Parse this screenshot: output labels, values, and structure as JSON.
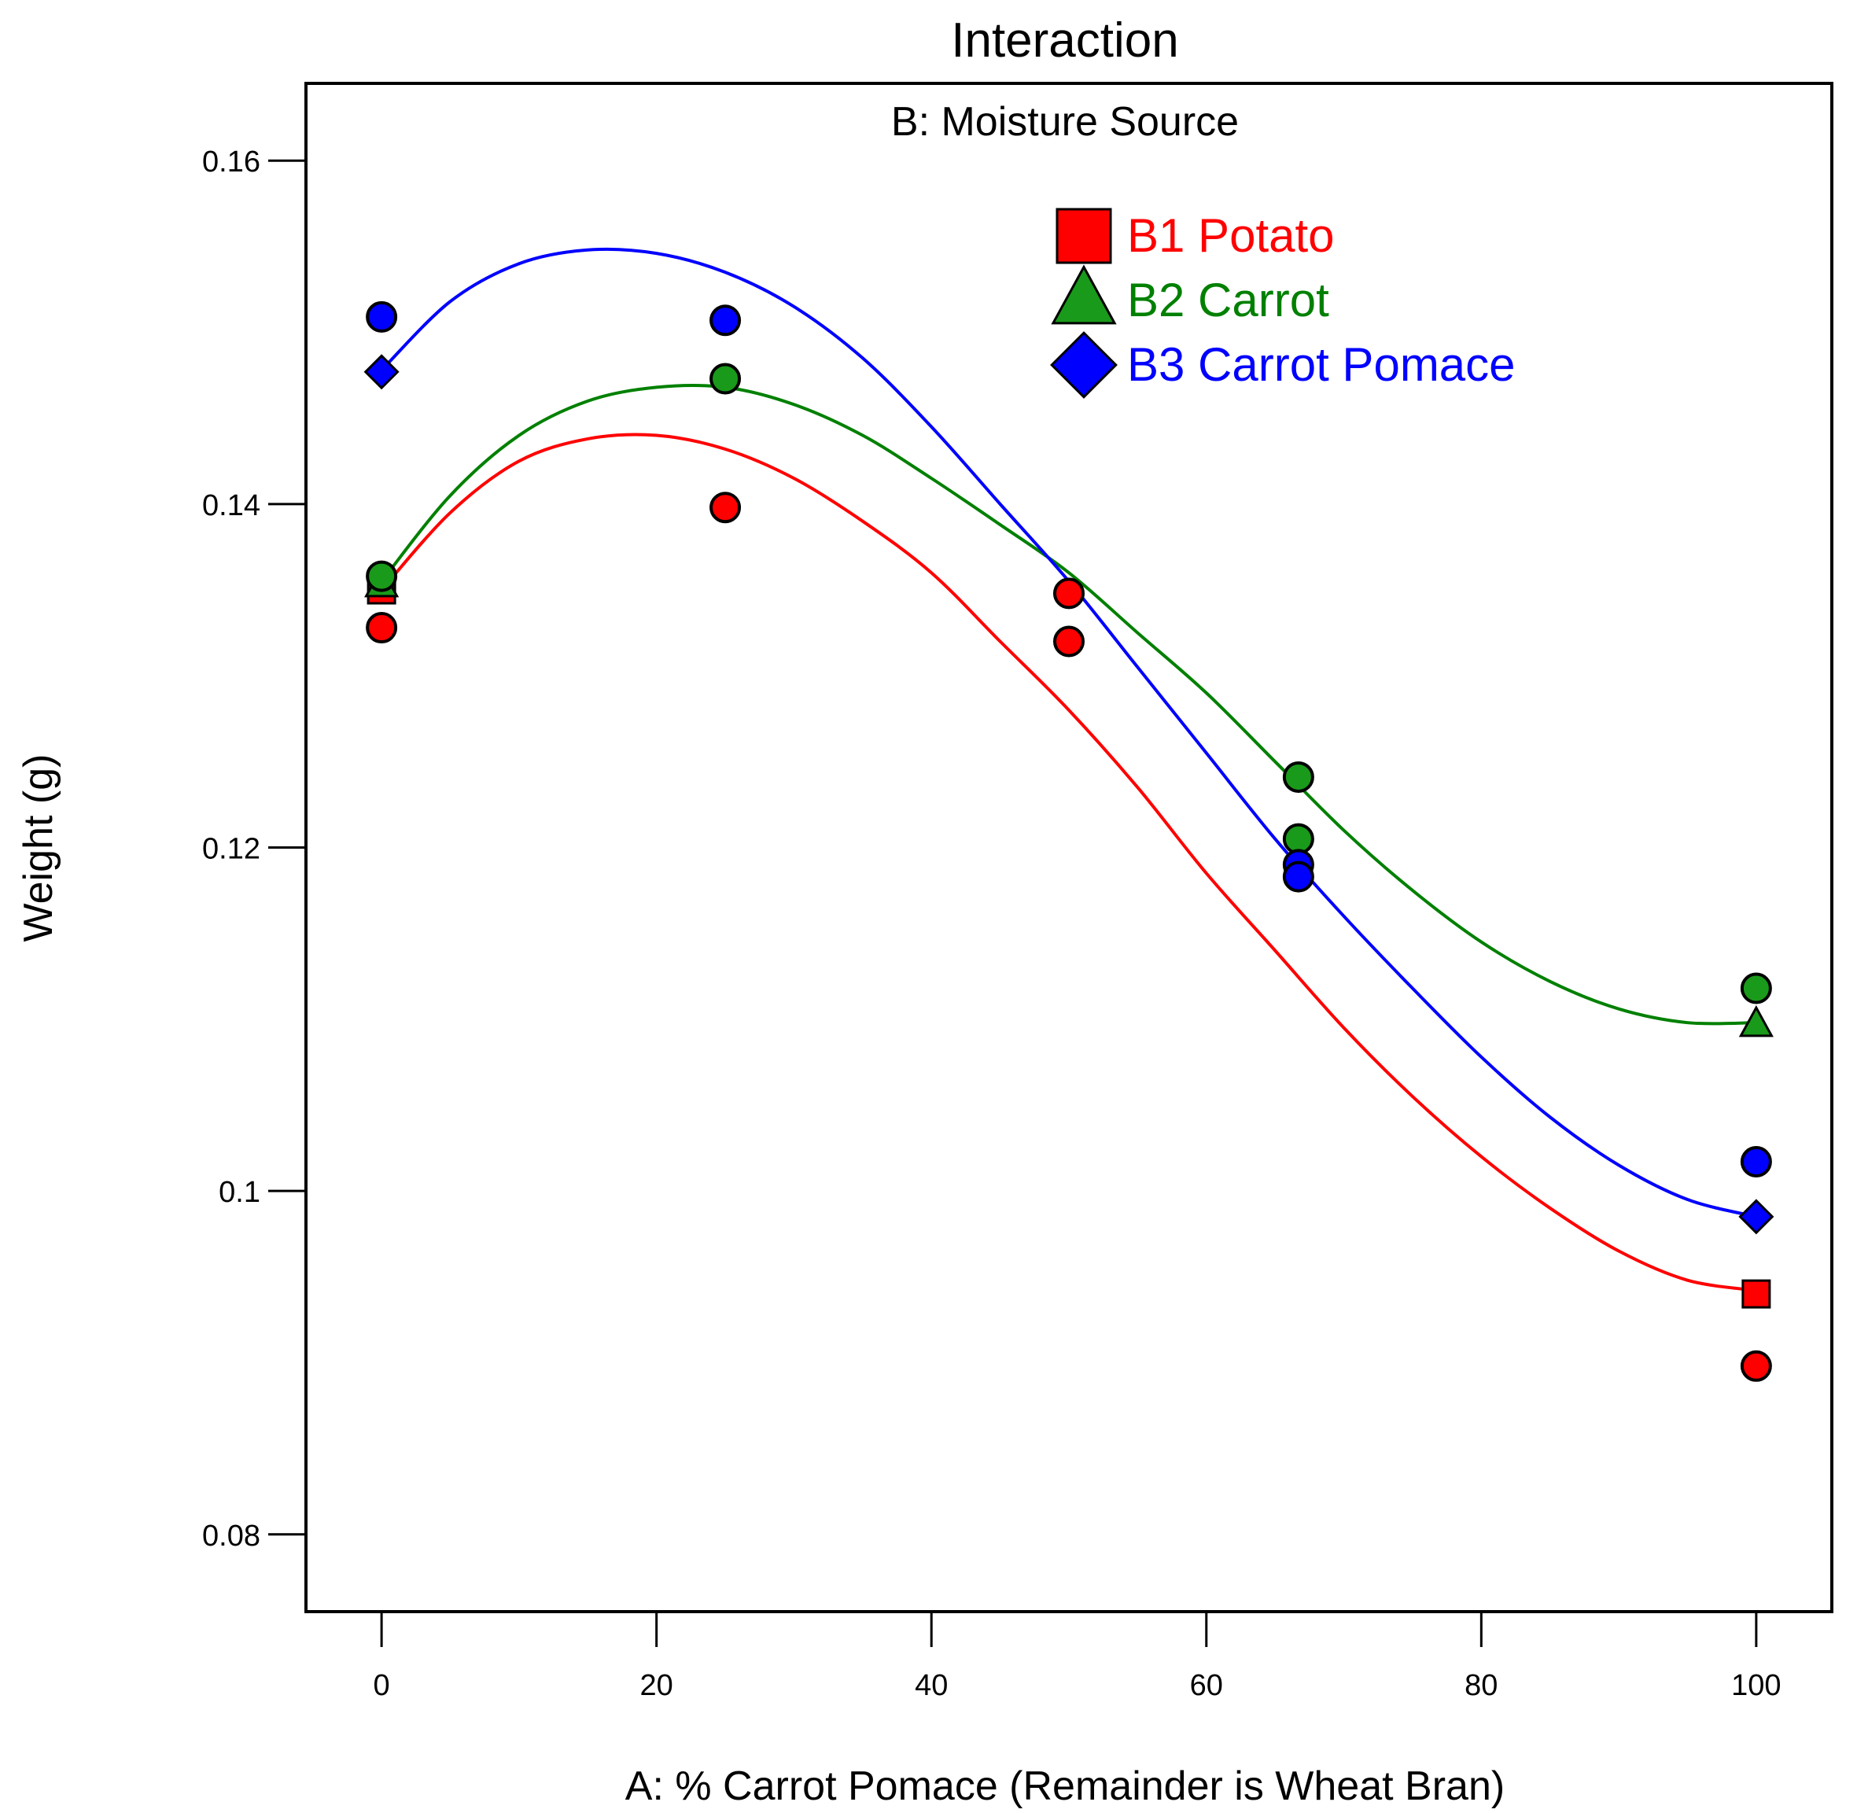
{
  "chart_data": {
    "type": "scatter",
    "title": "Interaction",
    "subtitle": "B: Moisture Source",
    "xlabel": "A: % Carrot Pomace (Remainder is Wheat Bran)",
    "ylabel": "Weight (g)",
    "xlim": [
      -5.5,
      105.5
    ],
    "ylim": [
      0.0755,
      0.1645
    ],
    "x_ticks": [
      0,
      20,
      40,
      60,
      80,
      100
    ],
    "x_tick_labels": [
      "0",
      "20",
      "40",
      "60",
      "80",
      "100"
    ],
    "y_ticks": [
      0.08,
      0.1,
      0.12,
      0.14,
      0.16
    ],
    "y_tick_labels": [
      "0.08",
      "0.1",
      "0.12",
      "0.14",
      "0.16"
    ],
    "grid": false,
    "legend_position": "top-center",
    "series": [
      {
        "name": "B1 Potato",
        "color": "#ff0000",
        "marker": "square",
        "predicted": [
          {
            "x": 0,
            "y": 0.135
          },
          {
            "x": 100,
            "y": 0.094
          }
        ],
        "observed": [
          {
            "x": 0,
            "y": 0.1328
          },
          {
            "x": 25,
            "y": 0.1398
          },
          {
            "x": 50,
            "y": 0.1348
          },
          {
            "x": 50,
            "y": 0.132
          },
          {
            "x": 100,
            "y": 0.0898
          }
        ],
        "curve": [
          {
            "x": 0,
            "y": 0.135
          },
          {
            "x": 5,
            "y": 0.1395
          },
          {
            "x": 10,
            "y": 0.1425
          },
          {
            "x": 15,
            "y": 0.1438
          },
          {
            "x": 20,
            "y": 0.144
          },
          {
            "x": 25,
            "y": 0.1432
          },
          {
            "x": 30,
            "y": 0.1415
          },
          {
            "x": 35,
            "y": 0.139
          },
          {
            "x": 40,
            "y": 0.136
          },
          {
            "x": 45,
            "y": 0.132
          },
          {
            "x": 50,
            "y": 0.128
          },
          {
            "x": 55,
            "y": 0.1235
          },
          {
            "x": 60,
            "y": 0.1185
          },
          {
            "x": 65,
            "y": 0.114
          },
          {
            "x": 70,
            "y": 0.1095
          },
          {
            "x": 75,
            "y": 0.1055
          },
          {
            "x": 80,
            "y": 0.102
          },
          {
            "x": 85,
            "y": 0.099
          },
          {
            "x": 90,
            "y": 0.0965
          },
          {
            "x": 95,
            "y": 0.0948
          },
          {
            "x": 100,
            "y": 0.0942
          }
        ]
      },
      {
        "name": "B2 Carrot",
        "color": "#008000",
        "fill": "#1a9a1a",
        "marker": "triangle",
        "predicted": [
          {
            "x": 0,
            "y": 0.1353
          },
          {
            "x": 100,
            "y": 0.1097
          }
        ],
        "observed": [
          {
            "x": 0,
            "y": 0.1358
          },
          {
            "x": 25,
            "y": 0.1473
          },
          {
            "x": 66.7,
            "y": 0.1241
          },
          {
            "x": 66.7,
            "y": 0.1205
          },
          {
            "x": 100,
            "y": 0.1118
          }
        ],
        "curve": [
          {
            "x": 0,
            "y": 0.1355
          },
          {
            "x": 5,
            "y": 0.1405
          },
          {
            "x": 10,
            "y": 0.144
          },
          {
            "x": 15,
            "y": 0.146
          },
          {
            "x": 20,
            "y": 0.1468
          },
          {
            "x": 25,
            "y": 0.1468
          },
          {
            "x": 30,
            "y": 0.1458
          },
          {
            "x": 35,
            "y": 0.144
          },
          {
            "x": 40,
            "y": 0.1415
          },
          {
            "x": 45,
            "y": 0.1388
          },
          {
            "x": 50,
            "y": 0.136
          },
          {
            "x": 55,
            "y": 0.1325
          },
          {
            "x": 60,
            "y": 0.129
          },
          {
            "x": 65,
            "y": 0.125
          },
          {
            "x": 70,
            "y": 0.121
          },
          {
            "x": 75,
            "y": 0.1175
          },
          {
            "x": 80,
            "y": 0.1145
          },
          {
            "x": 85,
            "y": 0.1122
          },
          {
            "x": 90,
            "y": 0.1106
          },
          {
            "x": 95,
            "y": 0.1098
          },
          {
            "x": 100,
            "y": 0.1098
          }
        ]
      },
      {
        "name": "B3 Carrot Pomace",
        "color": "#0000ff",
        "marker": "diamond",
        "predicted": [
          {
            "x": 0,
            "y": 0.1477
          },
          {
            "x": 100,
            "y": 0.0985
          }
        ],
        "observed": [
          {
            "x": 0,
            "y": 0.1509
          },
          {
            "x": 25,
            "y": 0.1507
          },
          {
            "x": 66.7,
            "y": 0.119
          },
          {
            "x": 66.7,
            "y": 0.1183
          },
          {
            "x": 100,
            "y": 0.1017
          }
        ],
        "curve": [
          {
            "x": 0,
            "y": 0.1478
          },
          {
            "x": 5,
            "y": 0.1518
          },
          {
            "x": 10,
            "y": 0.154
          },
          {
            "x": 15,
            "y": 0.1548
          },
          {
            "x": 20,
            "y": 0.1546
          },
          {
            "x": 25,
            "y": 0.1535
          },
          {
            "x": 30,
            "y": 0.1515
          },
          {
            "x": 35,
            "y": 0.1485
          },
          {
            "x": 40,
            "y": 0.1445
          },
          {
            "x": 45,
            "y": 0.14
          },
          {
            "x": 50,
            "y": 0.1355
          },
          {
            "x": 55,
            "y": 0.1305
          },
          {
            "x": 60,
            "y": 0.1255
          },
          {
            "x": 65,
            "y": 0.1205
          },
          {
            "x": 70,
            "y": 0.116
          },
          {
            "x": 75,
            "y": 0.1118
          },
          {
            "x": 80,
            "y": 0.1078
          },
          {
            "x": 85,
            "y": 0.1043
          },
          {
            "x": 90,
            "y": 0.1015
          },
          {
            "x": 95,
            "y": 0.0995
          },
          {
            "x": 100,
            "y": 0.0985
          }
        ]
      }
    ]
  }
}
